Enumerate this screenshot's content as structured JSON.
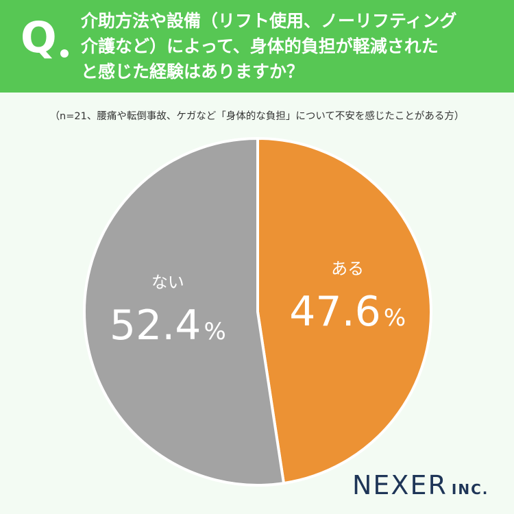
{
  "header": {
    "q_label": "Q",
    "question_lines": [
      "介助方法や設備（リフト使用、ノーリフティング",
      "介護など）によって、身体的負担が軽減された",
      "と感じた経験はありますか？"
    ]
  },
  "note": "（n=21、腰痛や転倒事故、ケガなど「身体的な負担」について不安を感じたことがある方）",
  "chart_data": {
    "type": "pie",
    "slices": [
      {
        "label": "ある",
        "value": 47.6,
        "display": "47.6",
        "unit": "%",
        "color": "#ec9234"
      },
      {
        "label": "ない",
        "value": 52.4,
        "display": "52.4",
        "unit": "%",
        "color": "#a3a3a3"
      }
    ],
    "start": "top, clockwise"
  },
  "logo": {
    "main": "NEXER",
    "suffix": "INC."
  }
}
